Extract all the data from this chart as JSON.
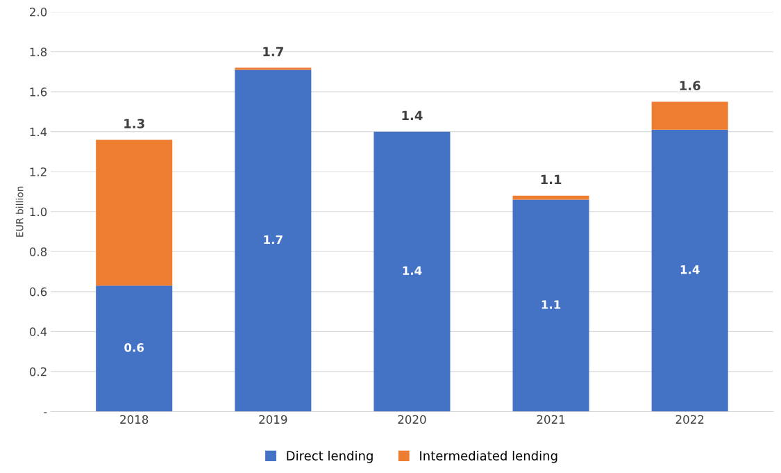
{
  "chart_data": {
    "type": "bar",
    "stacked": true,
    "ylabel": "EUR billion",
    "categories": [
      "2018",
      "2019",
      "2020",
      "2021",
      "2022"
    ],
    "series": [
      {
        "name": "Direct lending",
        "color": "#4472c4",
        "values": [
          0.63,
          1.71,
          1.4,
          1.06,
          1.41
        ],
        "value_labels": [
          "0.6",
          "1.7",
          "1.4",
          "1.1",
          "1.4"
        ]
      },
      {
        "name": "Intermediated lending",
        "color": "#ed7d31",
        "values": [
          0.73,
          0.01,
          0,
          0.02,
          0.14
        ]
      }
    ],
    "totals": [
      "1.3",
      "1.7",
      "1.4",
      "1.1",
      "1.6"
    ],
    "ylim": [
      0,
      2.0
    ],
    "yticks": [
      {
        "value": 0,
        "label": "-"
      },
      0.2,
      0.4,
      0.6,
      0.8,
      {
        "value": 1,
        "label": "1.0"
      },
      1.2,
      1.4,
      1.6,
      1.8,
      {
        "value": 2,
        "label": "2.0"
      }
    ],
    "grid": "y",
    "legend": "bottom"
  }
}
